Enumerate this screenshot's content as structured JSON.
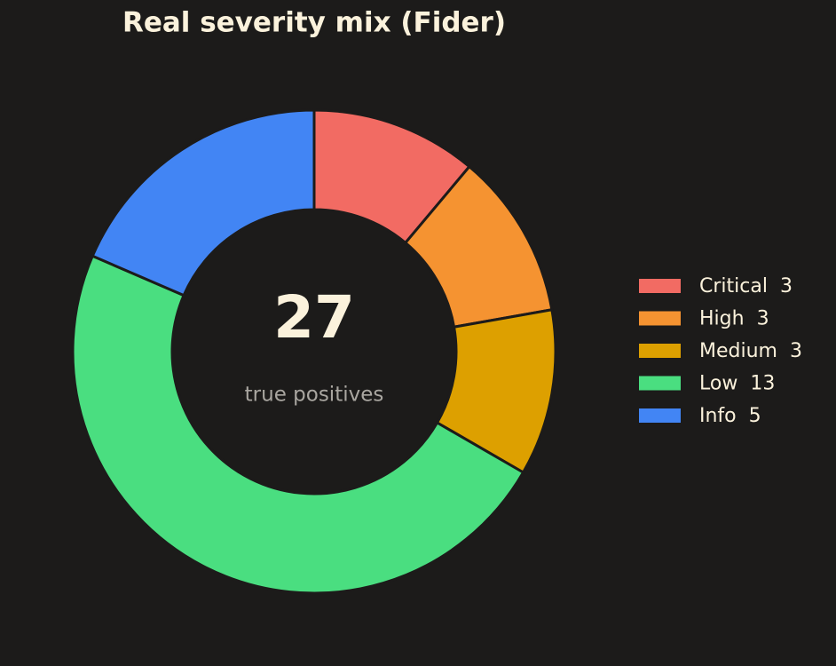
{
  "chart_data": {
    "type": "donut",
    "title": "Real severity mix (Fider)",
    "categories": [
      "Critical",
      "High",
      "Medium",
      "Low",
      "Info"
    ],
    "values": [
      3,
      3,
      3,
      13,
      5
    ],
    "colors": [
      "#f26b63",
      "#f59331",
      "#dda000",
      "#4ade80",
      "#4285f4"
    ],
    "center_value": 27,
    "center_label": "true positives",
    "legend": "right"
  }
}
